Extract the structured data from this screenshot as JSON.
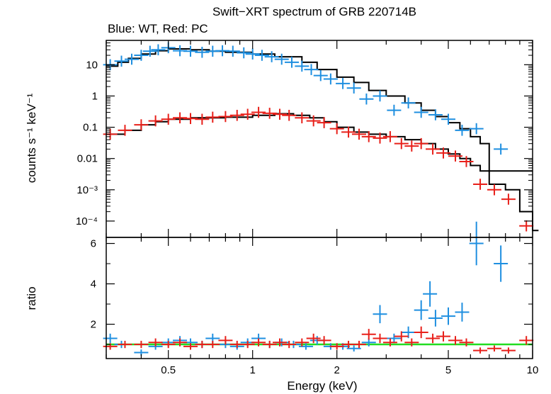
{
  "title": "Swift−XRT spectrum of GRB 220714B",
  "subtitle": "Blue: WT, Red: PC",
  "chart_data": [
    {
      "type": "scatter",
      "panel": "spectrum",
      "xlabel": "",
      "ylabel": "counts s⁻¹ keV⁻¹",
      "xscale": "log",
      "yscale": "log",
      "xlim": [
        0.3,
        10
      ],
      "ylim": [
        3e-05,
        60
      ],
      "y_ticks": [
        "10",
        "1",
        "0.1",
        "0.01",
        "10⁻³",
        "10⁻⁴"
      ],
      "grid": false,
      "series": [
        {
          "color": "#1f8fe0",
          "x": [
            0.31,
            0.34,
            0.37,
            0.4,
            0.43,
            0.46,
            0.5,
            0.55,
            0.6,
            0.66,
            0.72,
            0.78,
            0.85,
            0.93,
            1.0,
            1.08,
            1.17,
            1.27,
            1.38,
            1.5,
            1.62,
            1.75,
            1.9,
            2.1,
            2.3,
            2.55,
            2.85,
            3.2,
            3.6,
            4.0,
            4.5,
            5.0,
            5.6,
            6.3,
            7.7
          ],
          "y": [
            10,
            13,
            15,
            20,
            27,
            30,
            35,
            28,
            27,
            25,
            27,
            28,
            27,
            24,
            22,
            20,
            18,
            15,
            12,
            9,
            7,
            4.5,
            3.5,
            2.5,
            1.8,
            0.8,
            1.0,
            0.35,
            0.6,
            0.3,
            0.25,
            0.18,
            0.08,
            0.09,
            0.02
          ]
        },
        {
          "color": "#e8201a",
          "x": [
            0.31,
            0.35,
            0.4,
            0.45,
            0.5,
            0.55,
            0.6,
            0.66,
            0.72,
            0.8,
            0.88,
            0.96,
            1.05,
            1.15,
            1.25,
            1.35,
            1.5,
            1.65,
            1.8,
            2.0,
            2.2,
            2.4,
            2.6,
            2.85,
            3.1,
            3.4,
            3.7,
            4.0,
            4.4,
            4.8,
            5.3,
            5.8,
            6.5,
            7.3,
            8.2,
            9.5
          ],
          "y": [
            0.06,
            0.08,
            0.12,
            0.16,
            0.18,
            0.2,
            0.19,
            0.18,
            0.21,
            0.22,
            0.24,
            0.26,
            0.3,
            0.28,
            0.26,
            0.24,
            0.2,
            0.16,
            0.14,
            0.09,
            0.07,
            0.06,
            0.05,
            0.045,
            0.05,
            0.03,
            0.025,
            0.03,
            0.02,
            0.015,
            0.012,
            0.008,
            0.0015,
            0.001,
            0.0005,
            7e-05
          ]
        }
      ],
      "model": {
        "color": "#000000",
        "wt": {
          "x": [
            0.3,
            0.33,
            0.36,
            0.4,
            0.45,
            0.5,
            0.6,
            0.7,
            0.8,
            1.0,
            1.2,
            1.5,
            1.7,
            2.0,
            2.3,
            2.6,
            3.0,
            3.5,
            4.0,
            4.5,
            5.0,
            5.5,
            6.0,
            6.5,
            7.0,
            9.5
          ],
          "y": [
            9,
            12,
            16,
            22,
            28,
            32,
            30,
            27,
            25,
            22,
            18,
            12,
            7,
            4,
            2.7,
            1.5,
            1.0,
            0.6,
            0.35,
            0.22,
            0.14,
            0.09,
            0.05,
            0.03,
            0.004,
            0.004
          ]
        },
        "pc": {
          "x": [
            0.3,
            0.35,
            0.4,
            0.45,
            0.5,
            0.6,
            0.7,
            0.8,
            1.0,
            1.2,
            1.4,
            1.6,
            1.8,
            2.0,
            2.3,
            2.6,
            3.0,
            3.5,
            4.0,
            4.5,
            5.0,
            5.5,
            6.0,
            6.5,
            7.0,
            8.0,
            9.0,
            10
          ],
          "y": [
            0.06,
            0.08,
            0.12,
            0.15,
            0.18,
            0.2,
            0.2,
            0.21,
            0.24,
            0.27,
            0.24,
            0.2,
            0.15,
            0.1,
            0.07,
            0.06,
            0.05,
            0.04,
            0.03,
            0.02,
            0.014,
            0.01,
            0.006,
            0.004,
            0.0015,
            0.001,
            0.0002,
            5e-05
          ]
        }
      }
    },
    {
      "type": "scatter",
      "panel": "ratio",
      "xlabel": "Energy (keV)",
      "ylabel": "ratio",
      "xscale": "log",
      "xlim": [
        0.3,
        10
      ],
      "ylim": [
        0.3,
        6.3
      ],
      "x_ticks": [
        0.5,
        1,
        2,
        5,
        10
      ],
      "x_tick_labels": [
        "0.5",
        "1",
        "2",
        "5",
        "10"
      ],
      "y_ticks": [
        2,
        4,
        6
      ],
      "y_tick_labels": [
        "2",
        "4",
        "6"
      ],
      "reference_line": {
        "y": 1,
        "color": "#22dd22"
      },
      "series": [
        {
          "color": "#1f8fe0",
          "x": [
            0.31,
            0.34,
            0.4,
            0.45,
            0.5,
            0.55,
            0.6,
            0.66,
            0.72,
            0.8,
            0.88,
            0.96,
            1.05,
            1.15,
            1.27,
            1.4,
            1.55,
            1.7,
            1.9,
            2.1,
            2.3,
            2.6,
            2.85,
            3.2,
            3.6,
            4.0,
            4.3,
            4.5,
            5.0,
            5.6,
            6.3,
            7.7
          ],
          "y": [
            1.3,
            1.0,
            0.6,
            0.9,
            1.1,
            1.2,
            1.1,
            1.0,
            1.3,
            1.0,
            0.9,
            1.1,
            1.3,
            1.0,
            1.1,
            1.0,
            0.9,
            1.2,
            0.9,
            0.9,
            0.8,
            1.1,
            2.5,
            1.3,
            1.6,
            2.7,
            3.5,
            2.3,
            2.4,
            2.6,
            6.0,
            5.0
          ]
        },
        {
          "color": "#e8201a",
          "x": [
            0.31,
            0.35,
            0.4,
            0.45,
            0.5,
            0.55,
            0.6,
            0.66,
            0.72,
            0.8,
            0.88,
            0.96,
            1.05,
            1.15,
            1.25,
            1.35,
            1.5,
            1.65,
            1.8,
            2.0,
            2.2,
            2.4,
            2.6,
            2.85,
            3.1,
            3.4,
            3.7,
            4.0,
            4.4,
            4.8,
            5.3,
            5.8,
            6.5,
            7.3,
            8.2,
            9.5
          ],
          "y": [
            0.9,
            1.0,
            1.0,
            1.1,
            1.0,
            1.1,
            0.9,
            1.0,
            1.0,
            1.2,
            1.0,
            1.0,
            1.1,
            1.0,
            1.1,
            1.0,
            1.1,
            1.3,
            1.2,
            0.9,
            1.0,
            1.0,
            1.5,
            1.3,
            1.1,
            1.4,
            1.1,
            1.6,
            1.3,
            1.4,
            1.2,
            1.1,
            0.7,
            0.8,
            0.7,
            1.2
          ]
        }
      ]
    }
  ]
}
